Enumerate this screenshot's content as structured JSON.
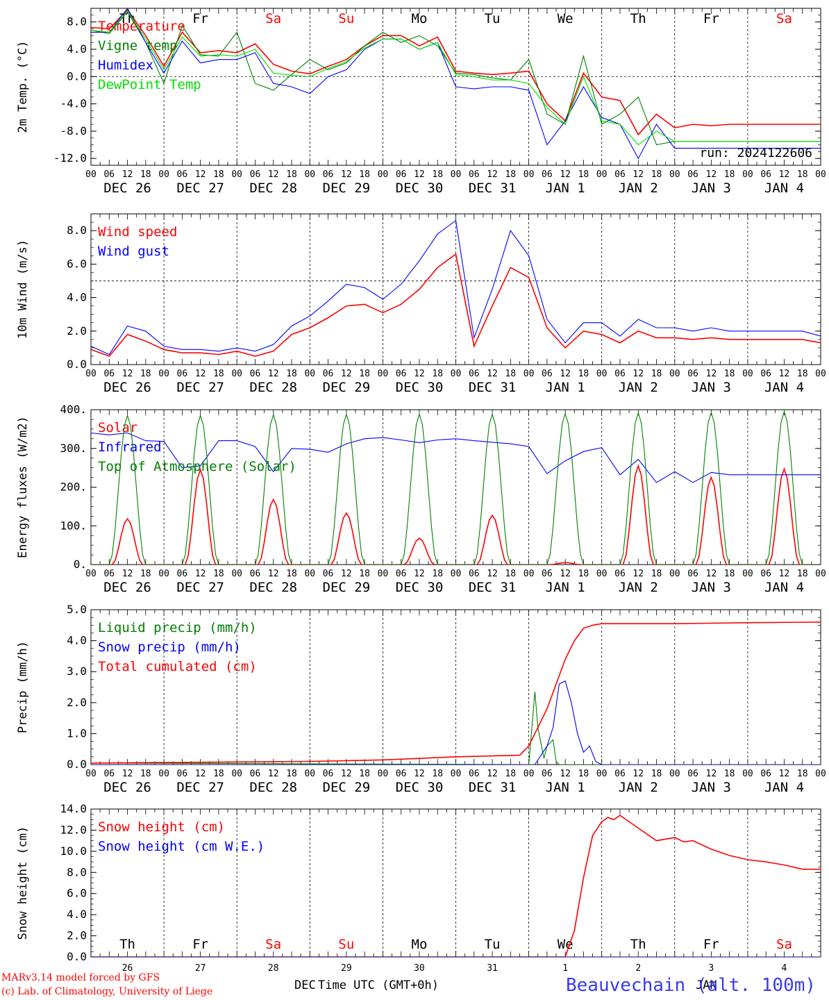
{
  "station": "Beauvechain (alt. 100m)",
  "run_label": "run: 2024122606",
  "credits": [
    "MARv3.14 model forced by GFS",
    "(c) Lab. of Climatology, University of Liege"
  ],
  "x_axis_title": "Time UTC (GMT+0h)",
  "bottom_month_label": "DEC",
  "bottom_month_label_2": "JAN",
  "hour_ticks": [
    "00",
    "06",
    "12",
    "18"
  ],
  "day_labels": [
    "DEC 26",
    "DEC 27",
    "DEC 28",
    "DEC 29",
    "DEC 30",
    "DEC 31",
    "JAN  1",
    "JAN  2",
    "JAN  3",
    "JAN  4"
  ],
  "day_numbers": [
    "26",
    "27",
    "28",
    "29",
    "30",
    "31",
    "1",
    "2",
    "3",
    "4"
  ],
  "weekdays": [
    {
      "label": "Th",
      "color": "#000000"
    },
    {
      "label": "Fr",
      "color": "#000000"
    },
    {
      "label": "Sa",
      "color": "#ff0000"
    },
    {
      "label": "Su",
      "color": "#ff0000"
    },
    {
      "label": "Mo",
      "color": "#000000"
    },
    {
      "label": "Tu",
      "color": "#000000"
    },
    {
      "label": "We",
      "color": "#000000"
    },
    {
      "label": "Th",
      "color": "#000000"
    },
    {
      "label": "Fr",
      "color": "#000000"
    },
    {
      "label": "Sa",
      "color": "#ff0000"
    }
  ],
  "colors": {
    "red": "#ff0000",
    "green": "#008000",
    "blue": "#0000ff",
    "lightgreen": "#00e000",
    "station": "#3a3af0"
  },
  "chart_data": [
    {
      "type": "line",
      "ylabel": "2m Temp. (°C)",
      "ylim": [
        -13,
        10
      ],
      "yticks": [
        8,
        4,
        0,
        -4,
        -8,
        -12
      ],
      "ytick_labels": [
        "8.0",
        "4.0",
        "0.0",
        "-4.0",
        "-8.0",
        "-12.0"
      ],
      "ref_line": 0,
      "x_unit": "hours since DEC 26 00 UTC",
      "series": [
        {
          "name": "Temperature",
          "color": "red",
          "x": [
            0,
            6,
            12,
            18,
            24,
            30,
            36,
            42,
            48,
            54,
            60,
            66,
            72,
            78,
            84,
            90,
            96,
            102,
            108,
            114,
            120,
            126,
            132,
            138,
            144,
            150,
            156,
            162,
            168,
            174,
            180,
            186,
            192,
            198,
            204,
            210,
            216,
            222,
            228,
            234,
            240
          ],
          "y": [
            7.2,
            7.0,
            9.8,
            6.0,
            1.5,
            6.5,
            3.5,
            3.8,
            3.5,
            4.8,
            1.8,
            0.8,
            0.4,
            1.5,
            2.5,
            4.5,
            6.0,
            6.0,
            4.5,
            5.8,
            0.8,
            0.5,
            0.3,
            0.5,
            0.8,
            -4.0,
            -6.5,
            0.5,
            -3.0,
            -3.5,
            -8.5,
            -5.5,
            -7.5,
            -7.0,
            -7.2,
            -7.0,
            -7.0,
            -7.0,
            -7.0,
            -7.0,
            -7.0
          ]
        },
        {
          "name": "Vigne temp",
          "color": "green",
          "x": [
            0,
            6,
            12,
            18,
            24,
            30,
            36,
            42,
            48,
            54,
            60,
            66,
            72,
            78,
            84,
            90,
            96,
            102,
            108,
            114,
            120,
            126,
            132,
            138,
            144,
            150,
            156,
            162,
            168,
            174,
            180,
            186,
            192,
            198,
            204,
            210,
            216,
            222,
            228,
            234,
            240
          ],
          "y": [
            6.8,
            6.3,
            9.5,
            5.0,
            -1.0,
            7.5,
            3.2,
            3.0,
            6.5,
            -1.0,
            -2.0,
            0.3,
            2.5,
            1.0,
            2.0,
            4.5,
            6.5,
            5.0,
            6.0,
            4.5,
            0.5,
            0.3,
            -0.2,
            -0.5,
            2.5,
            -5.5,
            -7.0,
            3.0,
            -7.0,
            -5.5,
            -3.0,
            -10.0,
            -9.5,
            -9.5,
            -9.5,
            -9.5,
            -9.5,
            -9.5,
            -9.5,
            -9.5,
            -9.5
          ]
        },
        {
          "name": "Humidex",
          "color": "blue",
          "x": [
            0,
            6,
            12,
            18,
            24,
            30,
            36,
            42,
            48,
            54,
            60,
            66,
            72,
            78,
            84,
            90,
            96,
            102,
            108,
            114,
            120,
            126,
            132,
            138,
            144,
            150,
            156,
            162,
            168,
            174,
            180,
            186,
            192,
            198,
            204,
            210,
            216,
            222,
            228,
            234,
            240
          ],
          "y": [
            6.5,
            6.5,
            10.0,
            5.0,
            0.5,
            5.2,
            2.0,
            2.5,
            2.5,
            3.5,
            -1.0,
            -1.5,
            -2.5,
            0.0,
            1.0,
            4.0,
            5.5,
            5.5,
            4.0,
            5.0,
            -1.5,
            -1.8,
            -1.5,
            -1.5,
            -2.0,
            -10.0,
            -6.5,
            -1.5,
            -6.0,
            -7.0,
            -12.0,
            -7.0,
            -10.5,
            -10.5,
            -10.5,
            -10.5,
            -10.5,
            -10.5,
            -10.5,
            -10.5,
            -10.5
          ]
        },
        {
          "name": "DewPoint Temp",
          "color": "lightgreen",
          "x": [
            0,
            6,
            12,
            18,
            24,
            30,
            36,
            42,
            48,
            54,
            60,
            66,
            72,
            78,
            84,
            90,
            96,
            102,
            108,
            114,
            120,
            126,
            132,
            138,
            144,
            150,
            156,
            162,
            168,
            174,
            180,
            186,
            192,
            198,
            204,
            210,
            216,
            222,
            228,
            234,
            240
          ],
          "y": [
            6.8,
            6.5,
            9.6,
            5.5,
            1.0,
            5.8,
            3.0,
            3.2,
            3.0,
            4.0,
            0.5,
            0.2,
            0.0,
            1.2,
            2.2,
            4.2,
            5.5,
            5.5,
            4.0,
            5.0,
            0.3,
            0.0,
            -0.5,
            -0.5,
            -1.0,
            -4.5,
            -7.0,
            0.0,
            -6.5,
            -7.0,
            -10.0,
            -8.0,
            -9.5,
            -9.5,
            -9.5,
            -9.5,
            -9.5,
            -9.5,
            -9.5,
            -9.5,
            -9.5
          ]
        }
      ]
    },
    {
      "type": "line",
      "ylabel": "10m Wind (m/s)",
      "ylim": [
        0,
        9
      ],
      "yticks": [
        0,
        2,
        4,
        6,
        8
      ],
      "ytick_labels": [
        "0.0",
        "2.0",
        "4.0",
        "6.0",
        "8.0"
      ],
      "ref_line": 5,
      "x_unit": "hours since DEC 26 00 UTC",
      "series": [
        {
          "name": "Wind speed",
          "color": "red",
          "x": [
            0,
            6,
            12,
            18,
            24,
            30,
            36,
            42,
            48,
            54,
            60,
            66,
            72,
            78,
            84,
            90,
            96,
            102,
            108,
            114,
            120,
            126,
            132,
            138,
            144,
            150,
            156,
            162,
            168,
            174,
            180,
            186,
            192,
            198,
            204,
            210,
            216,
            222,
            228,
            234,
            240
          ],
          "y": [
            0.9,
            0.5,
            1.8,
            1.4,
            0.9,
            0.7,
            0.7,
            0.6,
            0.8,
            0.5,
            0.8,
            1.8,
            2.2,
            2.8,
            3.5,
            3.6,
            3.1,
            3.6,
            4.5,
            5.8,
            6.6,
            1.1,
            3.5,
            5.8,
            5.2,
            2.2,
            1.0,
            2.0,
            1.8,
            1.3,
            2.0,
            1.6,
            1.6,
            1.5,
            1.6,
            1.5,
            1.5,
            1.5,
            1.5,
            1.5,
            1.3
          ]
        },
        {
          "name": "Wind gust",
          "color": "blue",
          "x": [
            0,
            6,
            12,
            18,
            24,
            30,
            36,
            42,
            48,
            54,
            60,
            66,
            72,
            78,
            84,
            90,
            96,
            102,
            108,
            114,
            120,
            126,
            132,
            138,
            144,
            150,
            156,
            162,
            168,
            174,
            180,
            186,
            192,
            198,
            204,
            210,
            216,
            222,
            228,
            234,
            240
          ],
          "y": [
            1.1,
            0.6,
            2.3,
            2.0,
            1.1,
            0.9,
            0.9,
            0.8,
            1.0,
            0.8,
            1.2,
            2.3,
            2.9,
            3.8,
            4.8,
            4.6,
            3.9,
            4.8,
            6.2,
            7.8,
            8.6,
            1.6,
            4.5,
            8.0,
            6.5,
            2.7,
            1.3,
            2.5,
            2.5,
            1.7,
            2.7,
            2.2,
            2.2,
            2.0,
            2.2,
            2.0,
            2.0,
            2.0,
            2.0,
            2.0,
            1.7
          ]
        }
      ]
    },
    {
      "type": "line",
      "ylabel": "Energy fluxes (W/m2)",
      "ylim": [
        0,
        400
      ],
      "yticks": [
        0,
        100,
        200,
        300,
        400
      ],
      "ytick_labels": [
        "0.",
        "100.",
        "200.",
        "300.",
        "400."
      ],
      "x_unit": "hours since DEC 26 00 UTC",
      "series": [
        {
          "name": "Solar",
          "color": "red",
          "day_peaks": [
            118,
            245,
            168,
            133,
            68,
            127,
            5,
            255,
            225,
            247
          ]
        },
        {
          "name": "Infrared",
          "color": "blue",
          "x": [
            0,
            6,
            12,
            18,
            24,
            30,
            36,
            42,
            48,
            54,
            60,
            66,
            72,
            78,
            84,
            90,
            96,
            102,
            108,
            114,
            120,
            126,
            132,
            138,
            144,
            150,
            156,
            162,
            168,
            174,
            180,
            186,
            192,
            198,
            204,
            210,
            216,
            222,
            228,
            234,
            240
          ],
          "y": [
            340,
            335,
            340,
            320,
            318,
            250,
            255,
            320,
            320,
            305,
            240,
            300,
            298,
            290,
            312,
            325,
            328,
            322,
            315,
            322,
            325,
            320,
            316,
            312,
            305,
            235,
            268,
            292,
            302,
            232,
            272,
            212,
            240,
            212,
            238,
            232,
            232,
            232,
            232,
            232,
            232
          ]
        },
        {
          "name": "Top of Atmosphere (Solar)",
          "color": "green",
          "day_peaks": [
            385,
            385,
            387,
            388,
            388,
            388,
            390,
            392,
            393,
            395
          ]
        }
      ]
    },
    {
      "type": "line",
      "ylabel": "Precip (mm/h)",
      "ylim": [
        0,
        5
      ],
      "yticks": [
        0,
        1,
        2,
        3,
        4,
        5
      ],
      "ytick_labels": [
        "0.0",
        "1.0",
        "2.0",
        "3.0",
        "4.0",
        "5.0"
      ],
      "x_unit": "hours since DEC 26 00 UTC",
      "series": [
        {
          "name": "Liquid precip (mm/h)",
          "color": "green",
          "x": [
            0,
            144,
            146,
            147,
            149,
            150,
            152,
            153,
            154,
            156,
            160,
            240
          ],
          "y": [
            0.05,
            0.0,
            2.35,
            1.2,
            0.2,
            0.6,
            0.8,
            0.1,
            0.0,
            0.0,
            0.0,
            0.0
          ]
        },
        {
          "name": "Snow precip (mm/h)",
          "color": "blue",
          "x": [
            0,
            146,
            148,
            150,
            152,
            154,
            156,
            158,
            160,
            162,
            164,
            166,
            168,
            240
          ],
          "y": [
            0.0,
            0.0,
            0.3,
            0.6,
            1.2,
            2.6,
            2.7,
            2.0,
            1.0,
            0.4,
            0.6,
            0.1,
            0.0,
            0.0
          ]
        },
        {
          "name": "Total cumulated (cm)",
          "color": "red",
          "x": [
            0,
            72,
            96,
            120,
            141,
            144,
            147,
            150,
            153,
            156,
            159,
            162,
            165,
            168,
            174,
            192,
            216,
            240
          ],
          "y": [
            0.05,
            0.1,
            0.15,
            0.25,
            0.3,
            0.6,
            1.2,
            1.8,
            2.6,
            3.4,
            4.0,
            4.4,
            4.5,
            4.55,
            4.55,
            4.55,
            4.58,
            4.6
          ]
        }
      ]
    },
    {
      "type": "line",
      "ylabel": "Snow height (cm)",
      "ylim": [
        0,
        14
      ],
      "yticks": [
        0,
        2,
        4,
        6,
        8,
        10,
        12,
        14
      ],
      "ytick_labels": [
        "0.0",
        "2.0",
        "4.0",
        "6.0",
        "8.0",
        "10.0",
        "12.0",
        "14.0"
      ],
      "x_unit": "hours since DEC 26 00 UTC",
      "series": [
        {
          "name": "Snow height (cm)",
          "color": "red",
          "x": [
            0,
            156,
            159,
            162,
            165,
            168,
            170,
            172,
            174,
            180,
            186,
            192,
            195,
            198,
            204,
            210,
            216,
            222,
            228,
            234,
            240
          ],
          "y": [
            0,
            0,
            2.5,
            7.5,
            11.5,
            12.8,
            13.2,
            13.0,
            13.4,
            12.2,
            11.0,
            11.3,
            10.9,
            11.0,
            10.2,
            9.6,
            9.2,
            9.0,
            8.7,
            8.3,
            8.3
          ]
        },
        {
          "name": "Snow height (cm W.E.)",
          "color": "blue",
          "x": [
            0,
            240
          ],
          "y": [
            0,
            0
          ]
        }
      ]
    }
  ]
}
